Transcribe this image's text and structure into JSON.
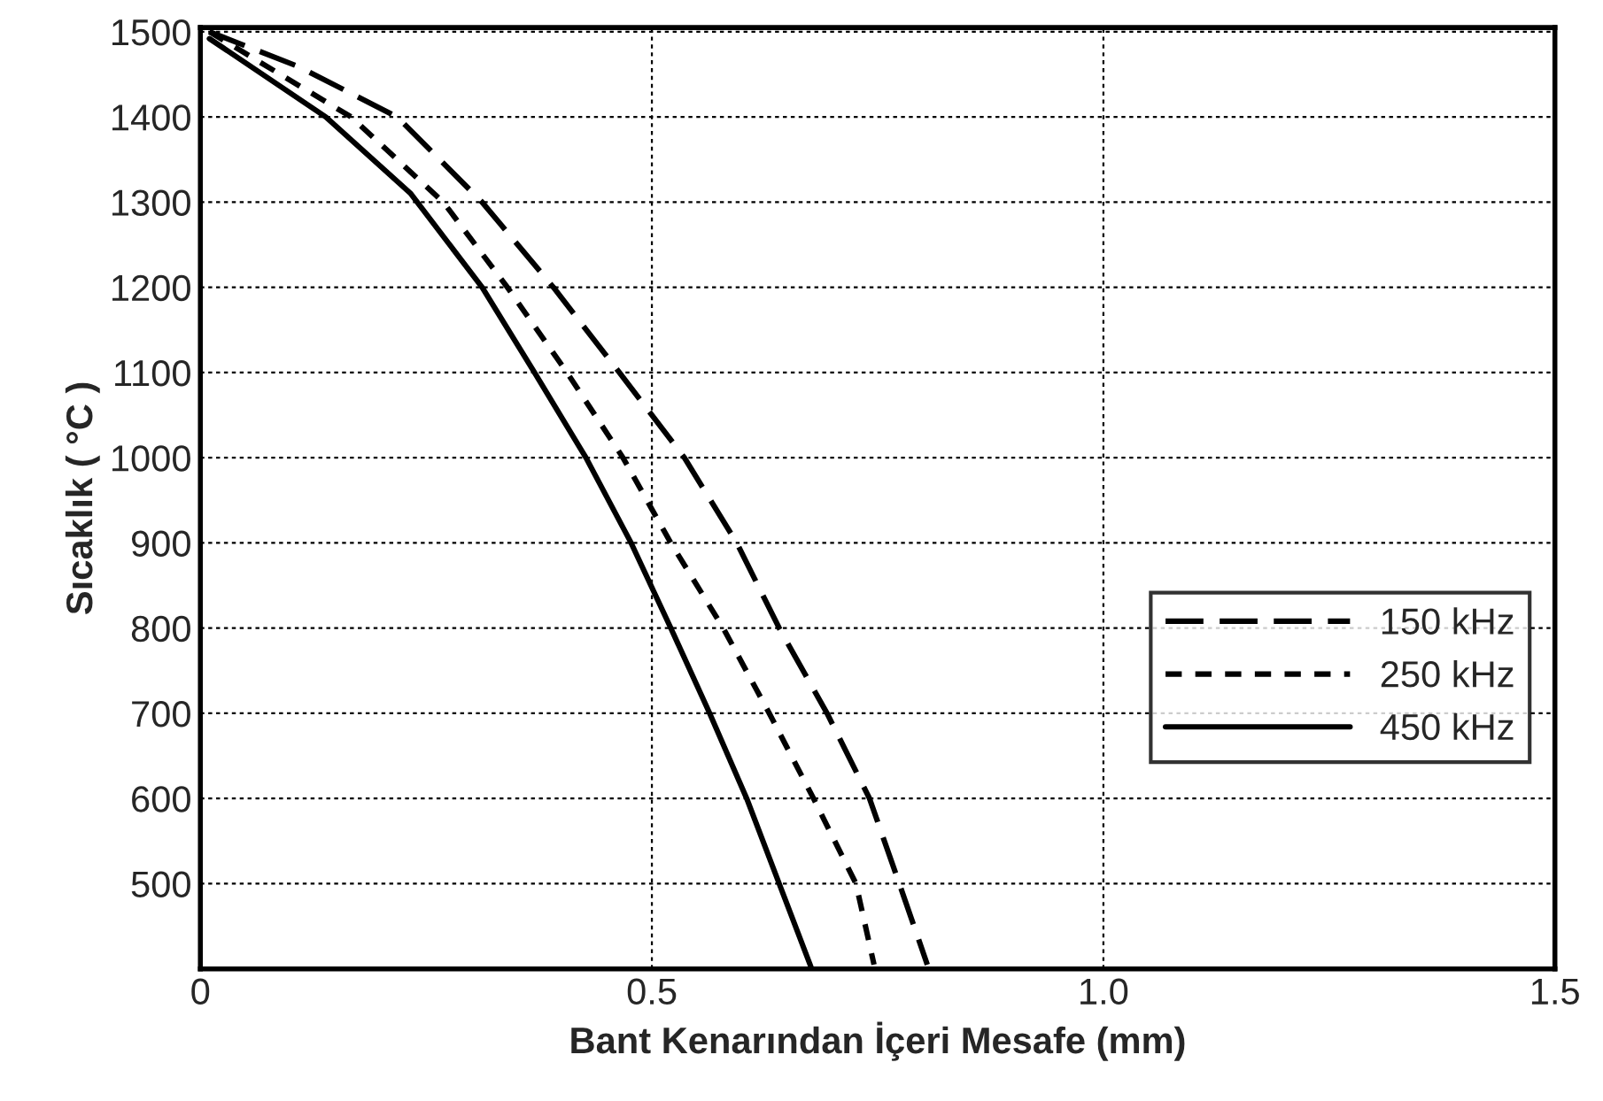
{
  "chart_data": {
    "type": "line",
    "xlabel": "Bant Kenarından İçeri Mesafe (mm)",
    "ylabel": "Sıcaklık ( °C )",
    "xlim": [
      0,
      1.5
    ],
    "ylim": [
      400,
      1505
    ],
    "xticks": [
      0,
      {
        "value": 0.5,
        "label": "0.5"
      },
      {
        "value": 1.0,
        "label": "1.0"
      },
      {
        "value": 1.5,
        "label": "1.5"
      }
    ],
    "yticks": [
      500,
      600,
      700,
      800,
      900,
      1000,
      1100,
      1200,
      1300,
      1400,
      1500
    ],
    "grid": true,
    "legend": "bottom right",
    "marker": "none",
    "series": [
      {
        "name": "150 kHz",
        "color": "#000000",
        "line_style": "longdash",
        "x": [
          0.01,
          0.109,
          0.218,
          0.312,
          0.391,
          0.464,
          0.536,
          0.594,
          0.641,
          0.694,
          0.741,
          0.774,
          0.805
        ],
        "values": [
          1500,
          1459,
          1400,
          1300,
          1200,
          1100,
          1000,
          900,
          800,
          700,
          600,
          500,
          405
        ]
      },
      {
        "name": "250 kHz",
        "color": "#000000",
        "line_style": "dashed",
        "x": [
          0.01,
          0.167,
          0.269,
          0.34,
          0.406,
          0.468,
          0.521,
          0.579,
          0.63,
          0.679,
          0.726,
          0.746
        ],
        "values": [
          1500,
          1400,
          1300,
          1200,
          1100,
          1000,
          900,
          800,
          700,
          600,
          500,
          405
        ]
      },
      {
        "name": "450 kHz",
        "color": "#000000",
        "line_style": "solid",
        "x": [
          0.01,
          0.139,
          0.233,
          0.312,
          0.37,
          0.427,
          0.477,
          0.521,
          0.564,
          0.605,
          0.641,
          0.677
        ],
        "values": [
          1492,
          1400,
          1310,
          1200,
          1100,
          1000,
          900,
          800,
          700,
          600,
          500,
          400
        ]
      }
    ]
  }
}
